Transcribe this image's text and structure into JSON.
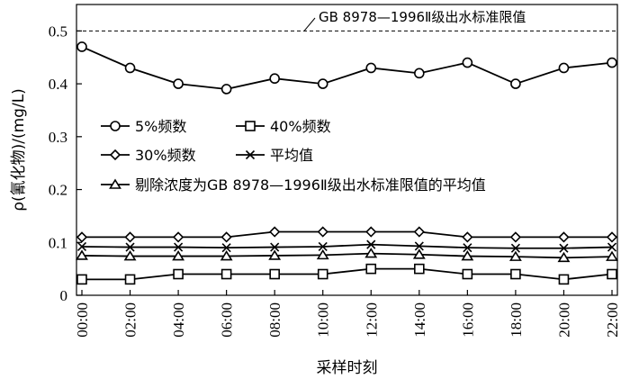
{
  "chart_data": {
    "type": "line",
    "xlabel": "采样时刻",
    "ylabel": "ρ(氰化物)/(mg/L)",
    "ylim": [
      0,
      0.55
    ],
    "y_ticks": [
      "0",
      "0.1",
      "0.2",
      "0.3",
      "0.4",
      "0.5"
    ],
    "y_tick_values": [
      0,
      0.1,
      0.2,
      0.3,
      0.4,
      0.5
    ],
    "categories": [
      "00:00",
      "02:00",
      "04:00",
      "06:00",
      "08:00",
      "10:00",
      "12:00",
      "14:00",
      "16:00",
      "18:00",
      "20:00",
      "22:00"
    ],
    "grid": false,
    "legend_position": "center-left",
    "series": [
      {
        "name": "5%频数",
        "marker": "circle",
        "values": [
          0.47,
          0.43,
          0.4,
          0.39,
          0.41,
          0.4,
          0.43,
          0.42,
          0.44,
          0.4,
          0.43,
          0.44
        ]
      },
      {
        "name": "40%频数",
        "marker": "square",
        "values": [
          0.03,
          0.03,
          0.04,
          0.04,
          0.04,
          0.04,
          0.05,
          0.05,
          0.04,
          0.04,
          0.03,
          0.04
        ]
      },
      {
        "name": "30%频数",
        "marker": "diamond",
        "values": [
          0.11,
          0.11,
          0.11,
          0.11,
          0.12,
          0.12,
          0.12,
          0.12,
          0.11,
          0.11,
          0.11,
          0.11
        ]
      },
      {
        "name": "平均值",
        "marker": "x",
        "values": [
          0.092,
          0.091,
          0.091,
          0.09,
          0.091,
          0.092,
          0.096,
          0.093,
          0.09,
          0.089,
          0.089,
          0.091
        ]
      },
      {
        "name": "剔除浓度为GB 8978—1996Ⅱ级出水标准限值的平均值",
        "marker": "triangle",
        "values": [
          0.075,
          0.074,
          0.074,
          0.074,
          0.075,
          0.076,
          0.079,
          0.077,
          0.074,
          0.073,
          0.071,
          0.073
        ]
      }
    ],
    "reference_line": {
      "value": 0.5,
      "label": "GB 8978—1996Ⅱ级出水标准限值"
    }
  }
}
